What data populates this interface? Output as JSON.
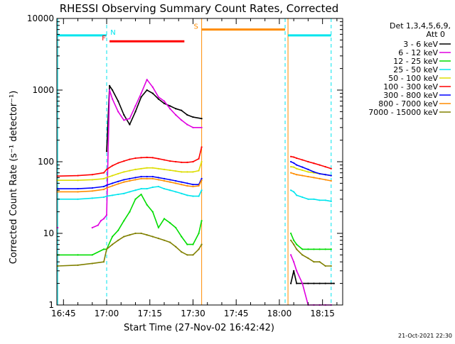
{
  "chart_data": {
    "type": "line",
    "title": "RHESSI Observing Summary Count Rates, Corrected",
    "ylabel": "Corrected Count Rate (s⁻¹ detector⁻¹)",
    "xlabel": "Start Time (27-Nov-02 16:42:42)",
    "yscale": "log",
    "ylim": [
      1,
      10000
    ],
    "xlim": [
      "16:42:42",
      "18:22:00"
    ],
    "x_ticks": [
      "16:45",
      "17:00",
      "17:15",
      "17:30",
      "17:45",
      "18:00",
      "18:15"
    ],
    "y_ticks": [
      "1",
      "10",
      "100",
      "1000",
      "10000"
    ],
    "detectors": "Det 1,3,4,5,6,9,",
    "attenuator": "Att 0",
    "timestamp": "21-Oct-2021 22:30",
    "grid": false,
    "legend_position": "top-right",
    "series": [
      {
        "name": "3 - 6 keV",
        "color": "#000000",
        "x": [
          "17:00",
          "17:01",
          "17:02",
          "17:04",
          "17:06",
          "17:08",
          "17:10",
          "17:12",
          "17:14",
          "17:16",
          "17:18",
          "17:20",
          "17:22",
          "17:24",
          "17:26",
          "17:28",
          "17:30",
          "17:33",
          "18:04",
          "18:05",
          "18:06",
          "18:08",
          "18:10",
          "18:12",
          "18:14",
          "18:16",
          "18:18",
          "18:19"
        ],
        "y": [
          140,
          1150,
          1000,
          700,
          450,
          330,
          500,
          800,
          1000,
          900,
          750,
          650,
          600,
          550,
          520,
          450,
          420,
          400,
          2,
          3,
          2,
          2,
          2,
          2,
          2,
          2,
          2,
          2
        ]
      },
      {
        "name": "6 - 12 keV",
        "color": "#e000e0",
        "x": [
          "16:43",
          "16:55",
          "16:57",
          "16:58",
          "16:59",
          "17:00",
          "17:01",
          "17:02",
          "17:04",
          "17:06",
          "17:08",
          "17:10",
          "17:12",
          "17:14",
          "17:16",
          "17:18",
          "17:20",
          "17:22",
          "17:24",
          "17:26",
          "17:28",
          "17:30",
          "17:33",
          "18:04",
          "18:05",
          "18:06",
          "18:08",
          "18:10",
          "18:12",
          "18:14",
          "18:16",
          "18:18"
        ],
        "y": [
          12,
          12,
          13,
          15,
          16,
          18,
          1000,
          750,
          500,
          380,
          400,
          600,
          900,
          1400,
          1100,
          800,
          700,
          550,
          450,
          380,
          330,
          300,
          300,
          5,
          4,
          3,
          2,
          1,
          1,
          1,
          1,
          1
        ]
      },
      {
        "name": "12 - 25 keV",
        "color": "#00dd00",
        "x": [
          "16:43",
          "16:50",
          "16:55",
          "16:59",
          "17:00",
          "17:02",
          "17:04",
          "17:06",
          "17:08",
          "17:10",
          "17:12",
          "17:14",
          "17:16",
          "17:18",
          "17:20",
          "17:22",
          "17:24",
          "17:26",
          "17:28",
          "17:30",
          "17:32",
          "17:33",
          "18:04",
          "18:05",
          "18:06",
          "18:08",
          "18:10",
          "18:12",
          "18:14",
          "18:16",
          "18:18"
        ],
        "y": [
          5,
          5,
          5,
          6,
          6,
          9,
          11,
          15,
          20,
          30,
          35,
          25,
          20,
          12,
          16,
          14,
          12,
          9,
          7,
          7,
          10,
          15,
          10,
          8,
          7,
          6,
          6,
          6,
          6,
          6,
          6
        ]
      },
      {
        "name": "25 - 50 keV",
        "color": "#00e5ee",
        "x": [
          "16:43",
          "16:50",
          "16:55",
          "16:59",
          "17:00",
          "17:02",
          "17:04",
          "17:06",
          "17:08",
          "17:10",
          "17:12",
          "17:14",
          "17:16",
          "17:18",
          "17:20",
          "17:22",
          "17:24",
          "17:26",
          "17:28",
          "17:30",
          "17:32",
          "17:33",
          "18:04",
          "18:05",
          "18:06",
          "18:08",
          "18:10",
          "18:12",
          "18:14",
          "18:16",
          "18:18"
        ],
        "y": [
          30,
          30,
          31,
          32,
          33,
          34,
          35,
          36,
          38,
          40,
          42,
          42,
          44,
          45,
          42,
          40,
          38,
          36,
          34,
          33,
          33,
          40,
          40,
          38,
          34,
          32,
          30,
          30,
          29,
          29,
          28
        ]
      },
      {
        "name": "50 - 100 keV",
        "color": "#dddd00",
        "x": [
          "16:43",
          "16:50",
          "16:55",
          "16:59",
          "17:00",
          "17:02",
          "17:04",
          "17:06",
          "17:08",
          "17:10",
          "17:12",
          "17:14",
          "17:16",
          "17:18",
          "17:20",
          "17:22",
          "17:24",
          "17:26",
          "17:28",
          "17:30",
          "17:32",
          "17:33",
          "18:04",
          "18:05",
          "18:06",
          "18:08",
          "18:10",
          "18:12",
          "18:14",
          "18:16",
          "18:18"
        ],
        "y": [
          55,
          55,
          56,
          58,
          60,
          64,
          68,
          72,
          75,
          78,
          80,
          82,
          82,
          80,
          78,
          76,
          74,
          72,
          72,
          72,
          75,
          100,
          85,
          84,
          80,
          76,
          72,
          70,
          68,
          66,
          64
        ]
      },
      {
        "name": "100 - 300 keV",
        "color": "#ff0000",
        "x": [
          "16:43",
          "16:50",
          "16:55",
          "16:59",
          "17:00",
          "17:02",
          "17:04",
          "17:06",
          "17:08",
          "17:10",
          "17:12",
          "17:14",
          "17:16",
          "17:18",
          "17:20",
          "17:22",
          "17:24",
          "17:26",
          "17:28",
          "17:30",
          "17:32",
          "17:33",
          "18:04",
          "18:05",
          "18:06",
          "18:08",
          "18:10",
          "18:12",
          "18:14",
          "18:16",
          "18:18"
        ],
        "y": [
          63,
          64,
          66,
          70,
          78,
          88,
          96,
          102,
          108,
          112,
          114,
          115,
          114,
          110,
          106,
          102,
          100,
          98,
          98,
          100,
          110,
          160,
          118,
          116,
          112,
          106,
          100,
          95,
          90,
          85,
          80
        ]
      },
      {
        "name": "300 - 800 keV",
        "color": "#0000ff",
        "x": [
          "16:43",
          "16:50",
          "16:55",
          "16:59",
          "17:00",
          "17:02",
          "17:04",
          "17:06",
          "17:08",
          "17:10",
          "17:12",
          "17:14",
          "17:16",
          "17:18",
          "17:20",
          "17:22",
          "17:24",
          "17:26",
          "17:28",
          "17:30",
          "17:32",
          "17:33",
          "18:04",
          "18:05",
          "18:06",
          "18:08",
          "18:10",
          "18:12",
          "18:14",
          "18:16",
          "18:18"
        ],
        "y": [
          42,
          42,
          43,
          45,
          47,
          50,
          53,
          56,
          58,
          60,
          62,
          62,
          62,
          60,
          58,
          56,
          54,
          52,
          50,
          48,
          48,
          58,
          100,
          96,
          90,
          84,
          78,
          72,
          68,
          66,
          64
        ]
      },
      {
        "name": "800 - 7000 keV",
        "color": "#ff8c00",
        "x": [
          "16:43",
          "16:50",
          "16:55",
          "16:59",
          "17:00",
          "17:02",
          "17:04",
          "17:06",
          "17:08",
          "17:10",
          "17:12",
          "17:14",
          "17:16",
          "17:18",
          "17:20",
          "17:22",
          "17:24",
          "17:26",
          "17:28",
          "17:30",
          "17:32",
          "17:33",
          "18:04",
          "18:05",
          "18:06",
          "18:08",
          "18:10",
          "18:12",
          "18:14",
          "18:16",
          "18:18"
        ],
        "y": [
          38,
          38,
          39,
          41,
          43,
          46,
          49,
          52,
          54,
          56,
          58,
          58,
          58,
          56,
          54,
          52,
          50,
          48,
          46,
          45,
          46,
          55,
          70,
          68,
          66,
          64,
          62,
          60,
          58,
          56,
          54
        ]
      },
      {
        "name": "7000 - 15000 keV",
        "color": "#808000",
        "x": [
          "16:43",
          "16:50",
          "16:55",
          "16:59",
          "17:00",
          "17:02",
          "17:04",
          "17:06",
          "17:08",
          "17:10",
          "17:12",
          "17:14",
          "17:16",
          "17:18",
          "17:20",
          "17:22",
          "17:24",
          "17:26",
          "17:28",
          "17:30",
          "17:32",
          "17:33",
          "18:04",
          "18:05",
          "18:06",
          "18:08",
          "18:10",
          "18:12",
          "18:14",
          "18:16",
          "18:18"
        ],
        "y": [
          3.5,
          3.6,
          3.8,
          4.0,
          6,
          7,
          8,
          9,
          9.5,
          10,
          10,
          9.5,
          9,
          8.5,
          8,
          7.5,
          6.5,
          5.5,
          5,
          5,
          6,
          7,
          8,
          7,
          6,
          5,
          4.5,
          4,
          4,
          3.5,
          3.5
        ]
      }
    ],
    "annotations": {
      "flags": [
        {
          "label": "N",
          "color": "#00e5ee",
          "segments": [
            [
              "16:43",
              "17:00"
            ],
            [
              "18:03",
              "18:18"
            ]
          ],
          "y": 5800
        },
        {
          "label": "F",
          "color": "#ff0000",
          "segments": [
            [
              "17:01",
              "17:27"
            ]
          ],
          "y": 4800
        },
        {
          "label": "S",
          "color": "#ff8c00",
          "segments": [
            [
              "17:33",
              "18:02"
            ]
          ],
          "y": 7000
        }
      ],
      "vlines": [
        {
          "time": "16:43",
          "color": "#00e5ee",
          "dashed": false
        },
        {
          "time": "17:00",
          "color": "#00e5ee",
          "dashed": true
        },
        {
          "time": "17:33",
          "color": "#ff8c00",
          "dashed": false
        },
        {
          "time": "18:02",
          "color": "#00e5ee",
          "dashed": true
        },
        {
          "time": "18:03",
          "color": "#ff8c00",
          "dashed": false
        },
        {
          "time": "18:18",
          "color": "#00e5ee",
          "dashed": true
        }
      ]
    }
  }
}
